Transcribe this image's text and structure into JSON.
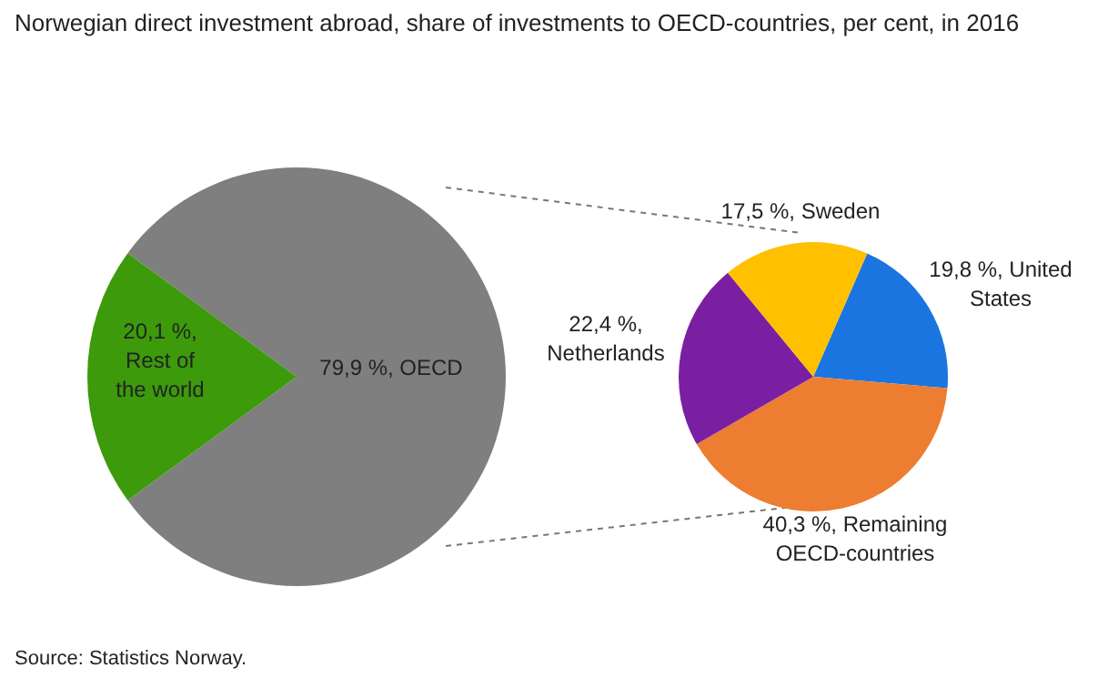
{
  "chart_data": [
    {
      "type": "pie",
      "title": "Norwegian direct investment abroad, share of investments to OECD-countries, per cent, in 2016",
      "categories": [
        "OECD",
        "Rest of the world"
      ],
      "values": [
        79.9,
        20.1
      ],
      "colors": [
        "#7f7f7f",
        "#3c9a0b"
      ],
      "value_labels": [
        "79,9 %,",
        "20,1 %,"
      ],
      "annotations": [
        "Source: Statistics Norway."
      ]
    },
    {
      "type": "pie",
      "categories": [
        "United States",
        "Remaining OECD-countries",
        "Netherlands",
        "Sweden"
      ],
      "values": [
        19.8,
        40.3,
        22.4,
        17.5
      ],
      "colors": [
        "#1a75e0",
        "#ed7d31",
        "#7b1fa2",
        "#ffc000"
      ],
      "value_labels": [
        "19,8 %,",
        "40,3 %,",
        "22,4 %,",
        "17,5 %,"
      ]
    }
  ]
}
